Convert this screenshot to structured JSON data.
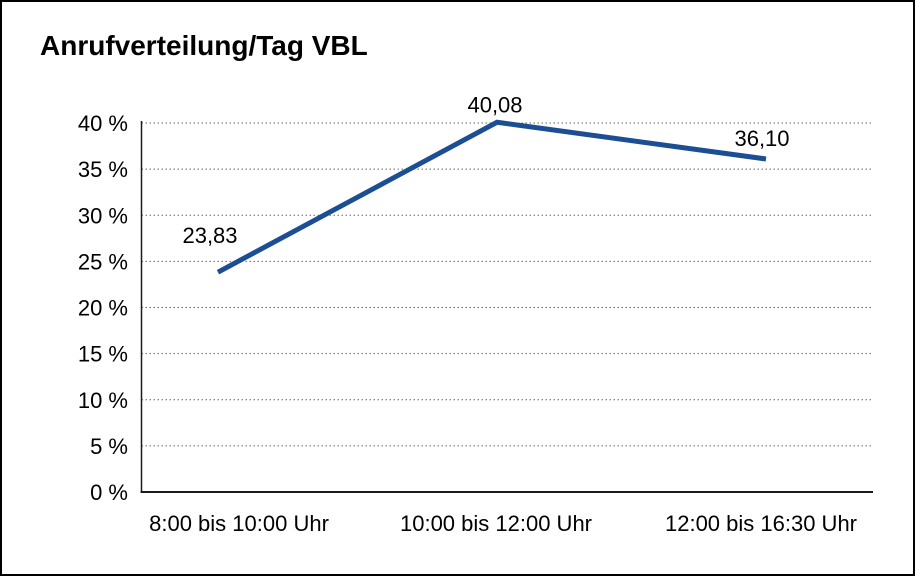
{
  "frame": {
    "background": "#ffffff",
    "border_color": "#000000"
  },
  "chart_data": {
    "type": "line",
    "title": "Anrufverteilung/Tag VBL",
    "categories": [
      "8:00 bis 10:00 Uhr",
      "10:00 bis 12:00 Uhr",
      "12:00 bis 16:30 Uhr"
    ],
    "values": [
      23.83,
      40.08,
      36.1
    ],
    "point_labels": [
      "23,83",
      "40,08",
      "36,10"
    ],
    "y_tick_labels": [
      "0 %",
      "5 %",
      "10 %",
      "15 %",
      "20 %",
      "25 %",
      "30 %",
      "35 %",
      "40 %"
    ],
    "y_tick_values": [
      0,
      5,
      10,
      15,
      20,
      25,
      30,
      35,
      40
    ],
    "ylim": [
      0,
      40
    ],
    "y_tick_step": 5,
    "xlabel": "",
    "ylabel": "",
    "grid": "horizontal-dotted",
    "legend_position": "none",
    "markers": "none",
    "line_color": "#1B4E93",
    "text_color": "#000000",
    "gridline_color": "#666666",
    "axis_color": "#1a1a1a"
  }
}
